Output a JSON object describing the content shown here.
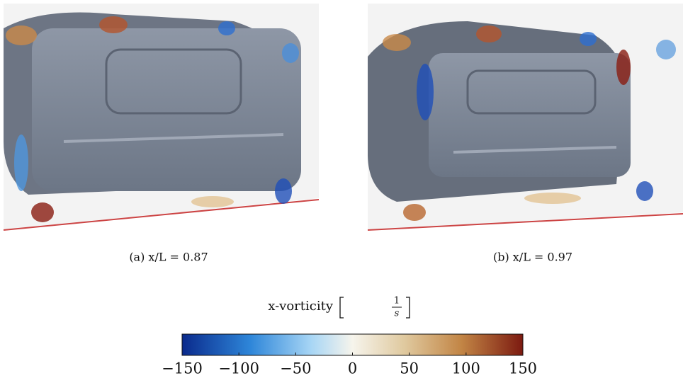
{
  "panels": [
    {
      "caption": "(a) x/L = 0.87"
    },
    {
      "caption": "(b) x/L = 0.97"
    }
  ],
  "colorbar": {
    "title": "x-vorticity",
    "unit_numerator": "1",
    "unit_denominator": "s",
    "range": [
      -150,
      150
    ],
    "ticks": [
      {
        "value": -150,
        "label": "−150"
      },
      {
        "value": -100,
        "label": "−100"
      },
      {
        "value": -50,
        "label": "−50"
      },
      0,
      50,
      100,
      150
    ]
  }
}
